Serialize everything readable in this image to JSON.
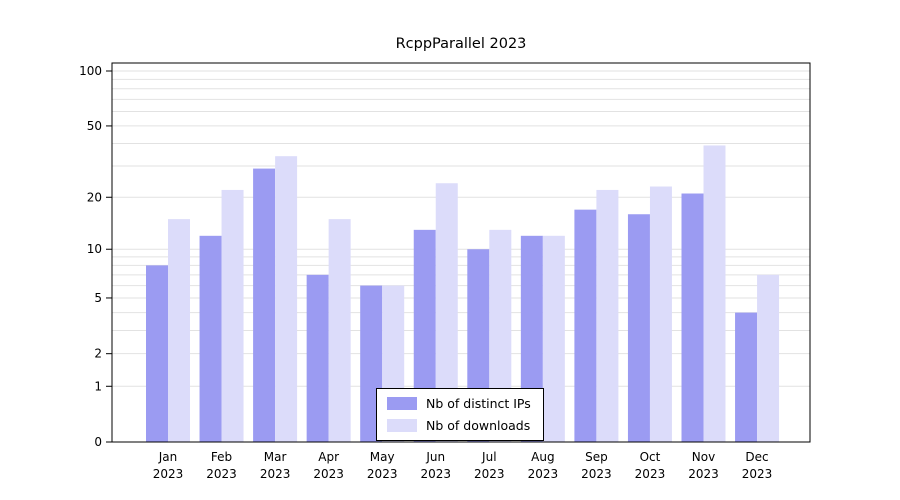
{
  "chart_data": {
    "type": "bar",
    "title": "RcppParallel 2023",
    "categories": [
      "Jan",
      "Feb",
      "Mar",
      "Apr",
      "May",
      "Jun",
      "Jul",
      "Aug",
      "Sep",
      "Oct",
      "Nov",
      "Dec"
    ],
    "year_label": "2023",
    "series": [
      {
        "name": "Nb of distinct IPs",
        "color": "#9b9bf2",
        "values": [
          8,
          12,
          29,
          7,
          6,
          13,
          10,
          12,
          17,
          16,
          21,
          4
        ]
      },
      {
        "name": "Nb of downloads",
        "color": "#dcdcfa",
        "values": [
          15,
          22,
          34,
          15,
          6,
          24,
          13,
          12,
          22,
          23,
          39,
          7
        ]
      }
    ],
    "xlabel": "",
    "ylabel": "",
    "yscale": "log1p",
    "ylim": [
      0,
      100
    ],
    "ytick_labels": [
      "100",
      "50",
      "20",
      "10",
      "5",
      "2",
      "1",
      "0"
    ],
    "ytick_values": [
      100,
      50,
      20,
      10,
      5,
      2,
      1,
      0
    ],
    "minor_grid_values": [
      1,
      2,
      3,
      4,
      5,
      6,
      7,
      8,
      9,
      10,
      20,
      30,
      40,
      50,
      60,
      70,
      80,
      90,
      100
    ],
    "grid": true,
    "legend_position": "bottom-center"
  },
  "colors": {
    "grid": "#e2e2e2",
    "axis": "#000000",
    "background": "#ffffff"
  }
}
